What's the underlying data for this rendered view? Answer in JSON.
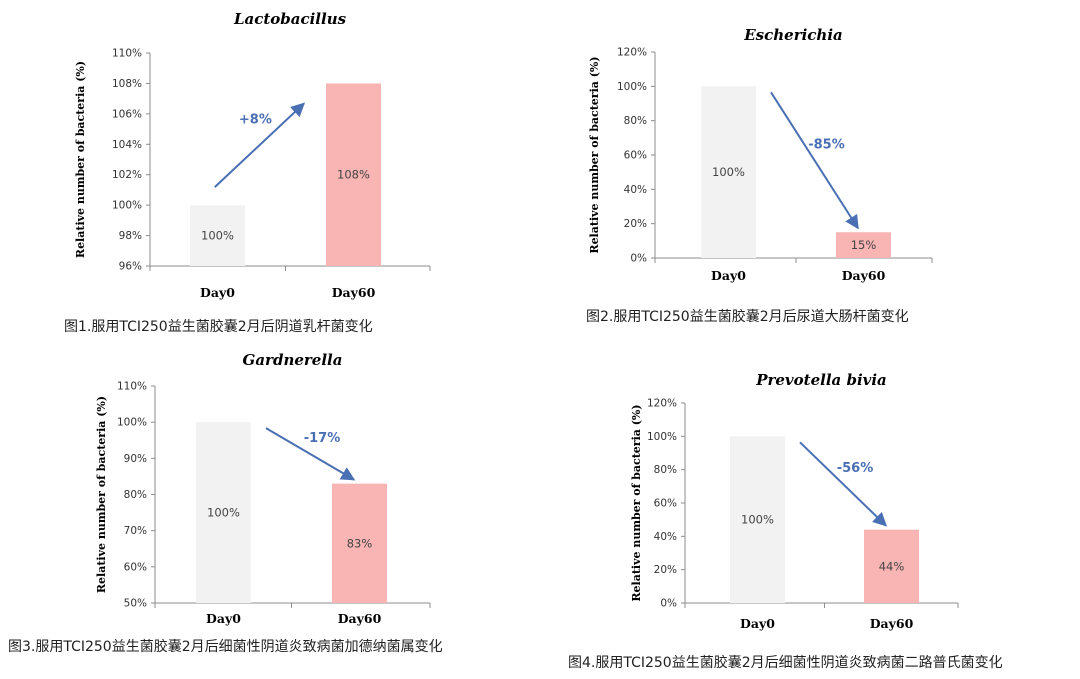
{
  "chart_data": [
    {
      "type": "bar",
      "title": "Lactobacillus",
      "ylabel": "Relative number of bacteria (%)",
      "categories": [
        "Day0",
        "Day60"
      ],
      "values": [
        100,
        108
      ],
      "data_labels": [
        "100%",
        "108%"
      ],
      "ylim": [
        96,
        110
      ],
      "yticks": [
        "96%",
        "98%",
        "100%",
        "102%",
        "104%",
        "106%",
        "108%",
        "110%"
      ],
      "bar_colors": [
        "#f2f2f2",
        "#f9b4b4"
      ],
      "change_label": "+8%",
      "change_direction": "up",
      "caption": "图1.服用TCI250益生菌胶囊2月后阴道乳杆菌变化",
      "grid": false
    },
    {
      "type": "bar",
      "title": "Escherichia",
      "ylabel": "Relative number of bacteria (%)",
      "categories": [
        "Day0",
        "Day60"
      ],
      "values": [
        100,
        15
      ],
      "data_labels": [
        "100%",
        "15%"
      ],
      "ylim": [
        0,
        120
      ],
      "yticks": [
        "0%",
        "20%",
        "40%",
        "60%",
        "80%",
        "100%",
        "120%"
      ],
      "bar_colors": [
        "#f2f2f2",
        "#f9b4b4"
      ],
      "change_label": "-85%",
      "change_direction": "down",
      "caption": "图2.服用TCI250益生菌胶囊2月后尿道大肠杆菌变化",
      "grid": false
    },
    {
      "type": "bar",
      "title": "Gardnerella",
      "ylabel": "Relative number of bacteria (%)",
      "categories": [
        "Day0",
        "Day60"
      ],
      "values": [
        100,
        83
      ],
      "data_labels": [
        "100%",
        "83%"
      ],
      "ylim": [
        50,
        110
      ],
      "yticks": [
        "50%",
        "60%",
        "70%",
        "80%",
        "90%",
        "100%",
        "110%"
      ],
      "bar_colors": [
        "#f2f2f2",
        "#f9b4b4"
      ],
      "change_label": "-17%",
      "change_direction": "down",
      "caption": "图3.服用TCI250益生菌胶囊2月后细菌性阴道炎致病菌加德纳菌属变化",
      "grid": false
    },
    {
      "type": "bar",
      "title": "Prevotella bivia",
      "ylabel": "Relative number of bacteria (%)",
      "categories": [
        "Day0",
        "Day60"
      ],
      "values": [
        100,
        44
      ],
      "data_labels": [
        "100%",
        "44%"
      ],
      "ylim": [
        0,
        120
      ],
      "yticks": [
        "0%",
        "20%",
        "40%",
        "60%",
        "80%",
        "100%",
        "120%"
      ],
      "bar_colors": [
        "#f2f2f2",
        "#f9b4b4"
      ],
      "change_label": "-56%",
      "change_direction": "down",
      "caption": "图4.服用TCI250益生菌胶囊2月后细菌性阴道炎致病菌二路普氏菌变化",
      "grid": false
    }
  ],
  "colors": {
    "arrow": "#4a6fb3",
    "axis": "#8c8c8c"
  }
}
